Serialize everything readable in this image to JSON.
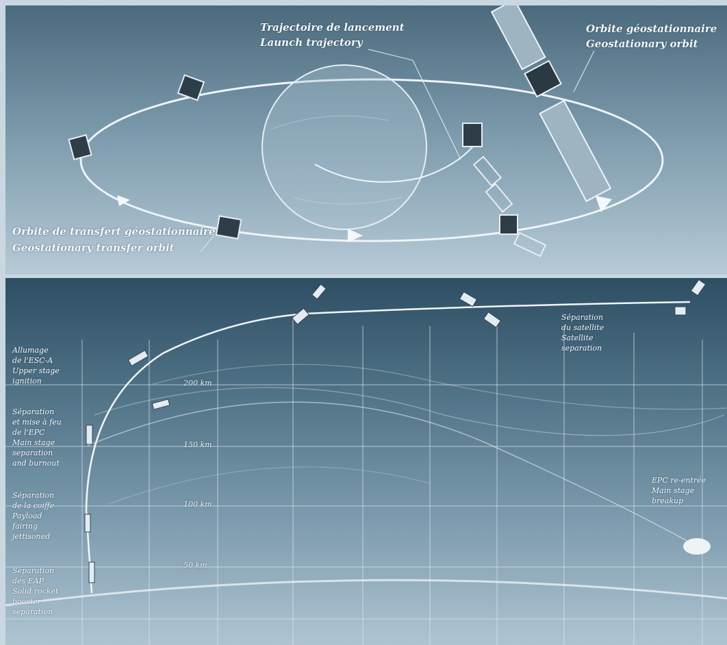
{
  "orbit": {
    "launch_fr": "Trajectoire de lancement",
    "launch_en": "Launch trajectory",
    "geo_fr": "Orbite géostationnaire",
    "geo_en": "Geostationary orbit",
    "gto_fr": "Orbite de transfert géostationnaire",
    "gto_en": "Geostationary transfer orbit"
  },
  "ascent": {
    "altitudes": [
      "200 km",
      "150 km",
      "100 km",
      "50 km"
    ],
    "events": [
      {
        "fr1": "Allumage",
        "fr2": "de l'ESC-A",
        "en1": "Upper stage",
        "en2": "ignition"
      },
      {
        "fr1": "Séparation",
        "fr2": "et mise à feu",
        "fr3": "de l'EPC",
        "en1": "Main stage",
        "en2": "separation",
        "en3": "and burnout"
      },
      {
        "fr1": "Séparation",
        "fr2": "de la coiffe",
        "en1": "Payload",
        "en2": "fairing",
        "en3": "jettisoned"
      },
      {
        "fr1": "Séparation",
        "fr2": "des EAP",
        "en1": "Solid rocket",
        "en2": "booster",
        "en3": "separation"
      }
    ],
    "satellite_sep": {
      "fr1": "Séparation",
      "fr2": "du satellite",
      "en1": "Satellite",
      "en2": "separation"
    },
    "reentry": {
      "fr": "EPC re-entrée",
      "en1": "Main stage",
      "en2": "breakup"
    }
  }
}
